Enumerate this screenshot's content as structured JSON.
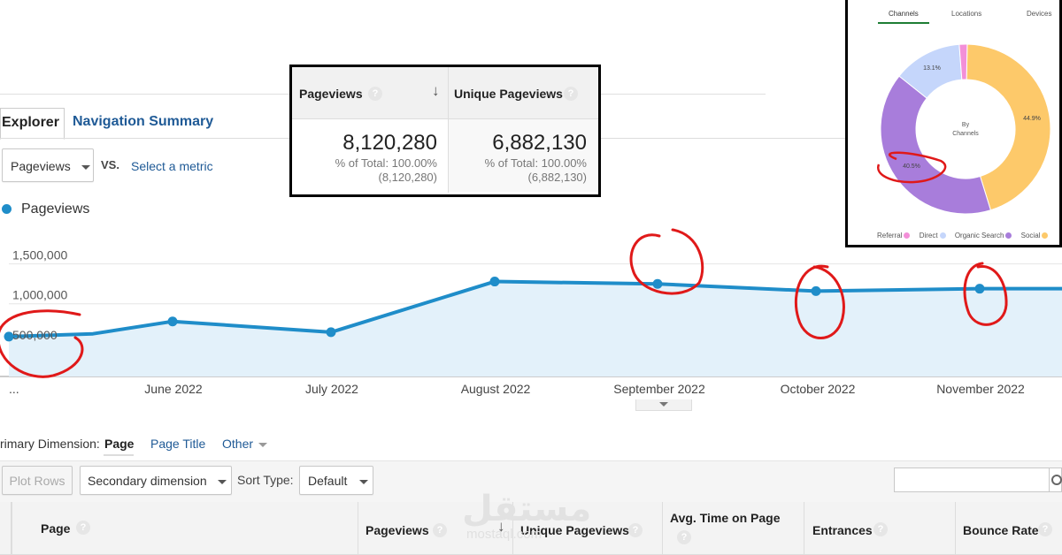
{
  "tabs": {
    "explorer": "Explorer",
    "navigation_summary": "Navigation Summary"
  },
  "metric_select": {
    "value": "Pageviews",
    "vs": "VS.",
    "select_metric": "Select a metric"
  },
  "legend_series": "Pageviews",
  "popup": {
    "col1_header": "Pageviews",
    "col2_header": "Unique Pageviews",
    "col1_value": "8,120,280",
    "col1_pct": "% of Total: 100.00%",
    "col1_total": "(8,120,280)",
    "col2_value": "6,882,130",
    "col2_pct": "% of Total: 100.00%",
    "col2_total": "(6,882,130)"
  },
  "donut": {
    "tabs": [
      "Channels",
      "Locations",
      "Devices"
    ],
    "center_line1": "By",
    "center_line2": "Channels",
    "segments": [
      {
        "name": "Social",
        "pct": 44.9,
        "label": "44.9%",
        "color": "#fdc96a"
      },
      {
        "name": "Organic Search",
        "pct": 40.5,
        "label": "40.5%",
        "color": "#a87ddb"
      },
      {
        "name": "Direct",
        "pct": 13.1,
        "label": "13.1%",
        "color": "#c5d6fb"
      },
      {
        "name": "Referral",
        "pct": 1.5,
        "label": "",
        "color": "#f38fd8"
      }
    ],
    "legend": [
      "Referral",
      "Direct",
      "Organic Search",
      "Social"
    ]
  },
  "chart_data": {
    "type": "area",
    "series": [
      {
        "name": "Pageviews",
        "values": [
          500000,
          535000,
          690000,
          555000,
          1190000,
          1160000,
          1070000,
          1100000,
          1100000
        ]
      }
    ],
    "x": [
      "...",
      "",
      "June 2022",
      "July 2022",
      "August 2022",
      "September 2022",
      "October 2022",
      "November 2022",
      ""
    ],
    "tick_labels": [
      "...",
      "June 2022",
      "July 2022",
      "August 2022",
      "September 2022",
      "October 2022",
      "November 2022"
    ],
    "y_ticks": [
      "1,500,000",
      "1,000,000",
      "500,000"
    ],
    "ylim": [
      0,
      1750000
    ],
    "color": "#1f8dc9",
    "grid": true
  },
  "primary_dimension": {
    "label": "rimary Dimension:",
    "active": "Page",
    "option1": "Page Title",
    "option2": "Other"
  },
  "toolbar": {
    "plot_rows": "Plot Rows",
    "secondary_dimension": "Secondary dimension",
    "sort_type": "Sort Type:",
    "sort_value": "Default"
  },
  "table_headers": {
    "page": "Page",
    "pageviews": "Pageviews",
    "unique_pageviews": "Unique Pageviews",
    "avg_time": "Avg. Time on Page",
    "entrances": "Entrances",
    "bounce_rate": "Bounce Rate"
  },
  "watermark": {
    "main": "مستقل",
    "sub": "mostaql.com"
  }
}
